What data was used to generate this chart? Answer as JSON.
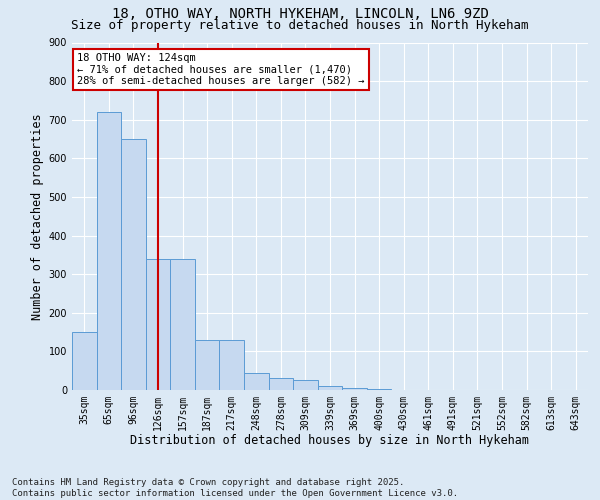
{
  "title_line1": "18, OTHO WAY, NORTH HYKEHAM, LINCOLN, LN6 9ZD",
  "title_line2": "Size of property relative to detached houses in North Hykeham",
  "xlabel": "Distribution of detached houses by size in North Hykeham",
  "ylabel": "Number of detached properties",
  "categories": [
    "35sqm",
    "65sqm",
    "96sqm",
    "126sqm",
    "157sqm",
    "187sqm",
    "217sqm",
    "248sqm",
    "278sqm",
    "309sqm",
    "339sqm",
    "369sqm",
    "400sqm",
    "430sqm",
    "461sqm",
    "491sqm",
    "521sqm",
    "552sqm",
    "582sqm",
    "613sqm",
    "643sqm"
  ],
  "values": [
    150,
    720,
    650,
    340,
    340,
    130,
    130,
    45,
    30,
    25,
    10,
    5,
    2,
    1,
    0,
    0,
    0,
    0,
    0,
    0,
    0
  ],
  "bar_color": "#c6d9f0",
  "bar_edge_color": "#5b9bd5",
  "vline_x": 3,
  "vline_color": "#cc0000",
  "annotation_text": "18 OTHO WAY: 124sqm\n← 71% of detached houses are smaller (1,470)\n28% of semi-detached houses are larger (582) →",
  "annotation_box_color": "#ffffff",
  "annotation_box_edge": "#cc0000",
  "ylim": [
    0,
    900
  ],
  "yticks": [
    0,
    100,
    200,
    300,
    400,
    500,
    600,
    700,
    800,
    900
  ],
  "footer_text": "Contains HM Land Registry data © Crown copyright and database right 2025.\nContains public sector information licensed under the Open Government Licence v3.0.",
  "bg_color": "#dce9f5",
  "plot_bg_color": "#dce9f5",
  "grid_color": "#ffffff",
  "title_fontsize": 10,
  "subtitle_fontsize": 9,
  "tick_fontsize": 7,
  "label_fontsize": 8.5,
  "footer_fontsize": 6.5
}
